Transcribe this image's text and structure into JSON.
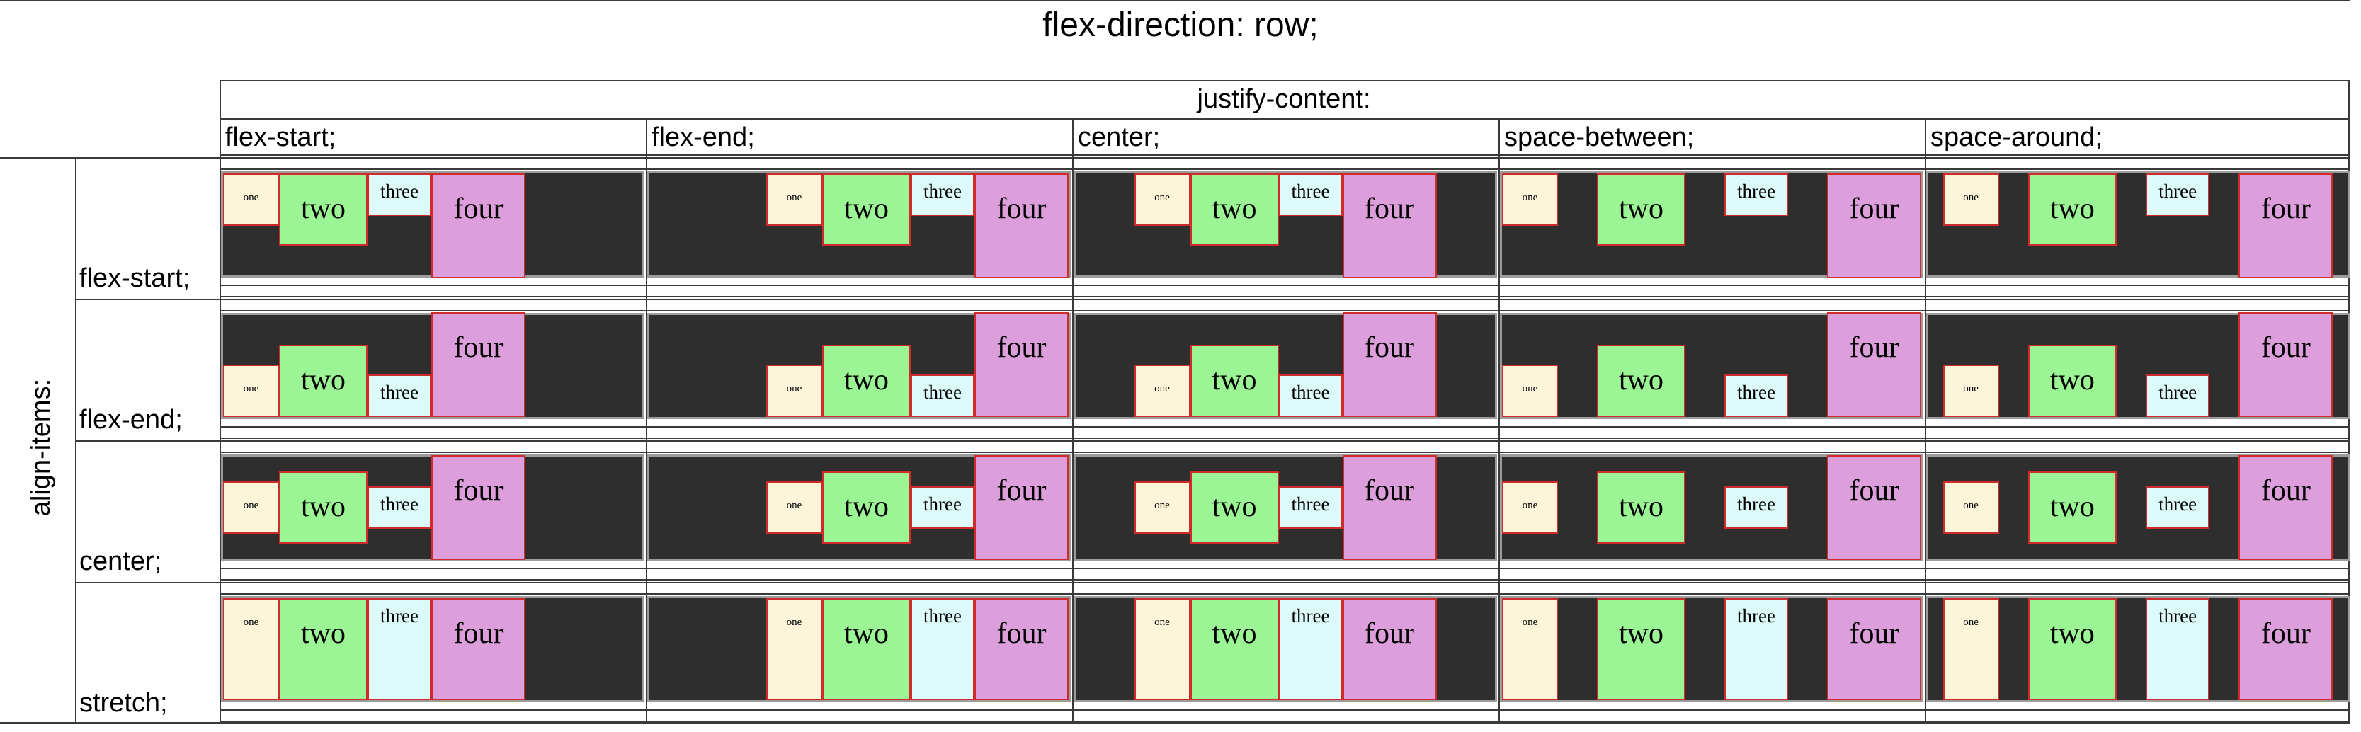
{
  "title": "flex-direction: row;",
  "justify_content_header": "justify-content:",
  "align_items_header": "align-items:",
  "columns": [
    {
      "label": "flex-start;",
      "value": "flex-start"
    },
    {
      "label": "flex-end;",
      "value": "flex-end"
    },
    {
      "label": "center;",
      "value": "center"
    },
    {
      "label": "space-between;",
      "value": "space-between"
    },
    {
      "label": "space-around;",
      "value": "space-around"
    }
  ],
  "rows": [
    {
      "label": "flex-start;",
      "value": "flex-start"
    },
    {
      "label": "flex-end;",
      "value": "flex-end"
    },
    {
      "label": "center;",
      "value": "center"
    },
    {
      "label": "stretch;",
      "value": "stretch"
    }
  ],
  "items": [
    {
      "key": "one",
      "label": "one",
      "color": "#fdf5d9"
    },
    {
      "key": "two",
      "label": "two",
      "color": "#9bf594"
    },
    {
      "key": "three",
      "label": "three",
      "color": "#dcfafa"
    },
    {
      "key": "four",
      "label": "four",
      "color": "#dd9fdc"
    }
  ],
  "colors": {
    "container_bg": "#2e2e2e",
    "container_border": "#9c9c9c",
    "item_border": "#d02a2a",
    "grid_line": "#3a3a3a"
  }
}
